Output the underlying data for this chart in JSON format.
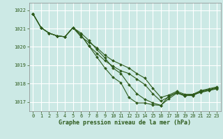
{
  "background_color": "#cce9e5",
  "grid_color": "#ffffff",
  "line_color": "#2d5a1b",
  "xlabel": "Graphe pression niveau de la mer (hPa)",
  "ylim": [
    1016.5,
    1022.4
  ],
  "xlim": [
    -0.5,
    23.5
  ],
  "yticks": [
    1017,
    1018,
    1019,
    1020,
    1021,
    1022
  ],
  "xticks": [
    0,
    1,
    2,
    3,
    4,
    5,
    6,
    7,
    8,
    9,
    10,
    11,
    12,
    13,
    14,
    15,
    16,
    17,
    18,
    19,
    20,
    21,
    22,
    23
  ],
  "series": [
    [
      1021.8,
      1021.05,
      1020.75,
      1020.6,
      1020.55,
      1021.05,
      1020.65,
      1020.05,
      1019.45,
      1018.85,
      1018.35,
      1018.05,
      1017.25,
      1016.95,
      1016.95,
      1016.85,
      1016.82,
      1017.32,
      1017.52,
      1017.32,
      1017.42,
      1017.52,
      1017.62,
      1017.72
    ],
    [
      1021.8,
      1021.05,
      1020.75,
      1020.6,
      1020.55,
      1021.05,
      1020.75,
      1020.35,
      1019.85,
      1019.4,
      1018.85,
      1018.55,
      1017.95,
      1017.45,
      1017.15,
      1016.95,
      1016.82,
      1017.18,
      1017.48,
      1017.35,
      1017.35,
      1017.55,
      1017.65,
      1017.75
    ],
    [
      1021.8,
      1021.05,
      1020.75,
      1020.6,
      1020.55,
      1021.05,
      1020.65,
      1020.05,
      1019.65,
      1019.25,
      1018.95,
      1018.7,
      1018.55,
      1018.25,
      1017.95,
      1017.45,
      1017.05,
      1017.28,
      1017.52,
      1017.38,
      1017.38,
      1017.58,
      1017.68,
      1017.78
    ],
    [
      1021.8,
      1021.05,
      1020.75,
      1020.6,
      1020.55,
      1021.05,
      1020.55,
      1020.25,
      1019.95,
      1019.55,
      1019.25,
      1019.05,
      1018.85,
      1018.55,
      1018.3,
      1017.75,
      1017.25,
      1017.38,
      1017.58,
      1017.42,
      1017.42,
      1017.62,
      1017.72,
      1017.82
    ]
  ]
}
